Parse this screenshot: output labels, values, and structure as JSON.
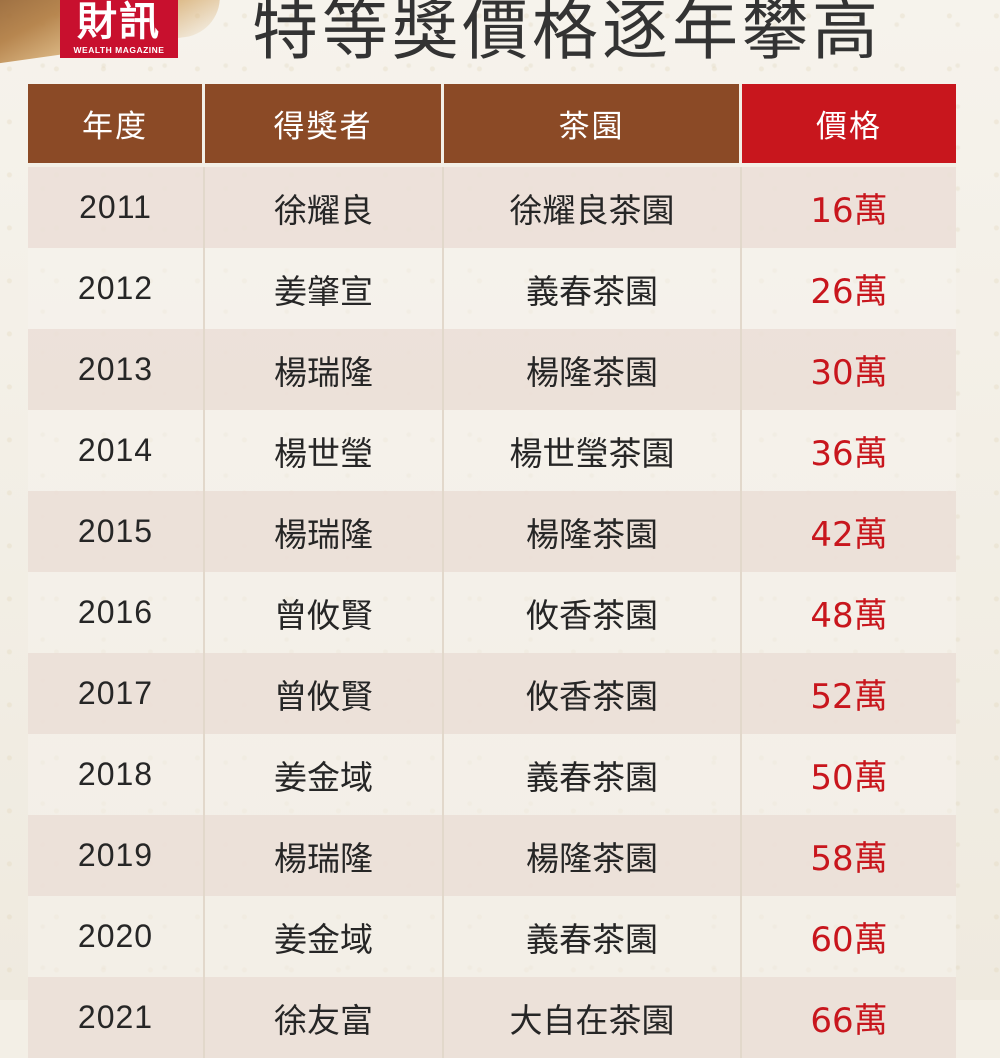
{
  "logo": {
    "main": "財訊",
    "sub": "WEALTH MAGAZINE"
  },
  "title": "特等獎價格逐年攀高",
  "colors": {
    "header_brown": "#8b4a26",
    "header_red": "#c8161d",
    "price_text": "#c8161d",
    "odd_row": "#ece0d8"
  },
  "table": {
    "headers": {
      "year": "年度",
      "winner": "得獎者",
      "garden": "茶園",
      "price": "價格"
    },
    "rows": [
      {
        "year": "2011",
        "winner": "徐耀良",
        "garden": "徐耀良茶園",
        "price": "16萬"
      },
      {
        "year": "2012",
        "winner": "姜肇宣",
        "garden": "義春茶園",
        "price": "26萬"
      },
      {
        "year": "2013",
        "winner": "楊瑞隆",
        "garden": "楊隆茶園",
        "price": "30萬"
      },
      {
        "year": "2014",
        "winner": "楊世瑩",
        "garden": "楊世瑩茶園",
        "price": "36萬"
      },
      {
        "year": "2015",
        "winner": "楊瑞隆",
        "garden": "楊隆茶園",
        "price": "42萬"
      },
      {
        "year": "2016",
        "winner": "曾攸賢",
        "garden": "攸香茶園",
        "price": "48萬"
      },
      {
        "year": "2017",
        "winner": "曾攸賢",
        "garden": "攸香茶園",
        "price": "52萬"
      },
      {
        "year": "2018",
        "winner": "姜金域",
        "garden": "義春茶園",
        "price": "50萬"
      },
      {
        "year": "2019",
        "winner": "楊瑞隆",
        "garden": "楊隆茶園",
        "price": "58萬"
      },
      {
        "year": "2020",
        "winner": "姜金域",
        "garden": "義春茶園",
        "price": "60萬"
      },
      {
        "year": "2021",
        "winner": "徐友富",
        "garden": "大自在茶園",
        "price": "66萬"
      }
    ]
  }
}
